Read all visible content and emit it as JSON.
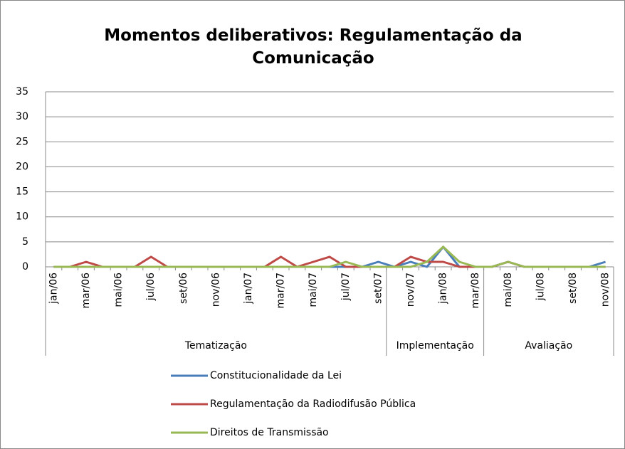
{
  "chart_data": {
    "type": "line",
    "title": "Momentos deliberativos: Regulamentação da Comunicação",
    "categories": [
      "jan/06",
      null,
      "mar/06",
      null,
      "mai/06",
      null,
      "jul/06",
      null,
      "set/06",
      null,
      "nov/06",
      null,
      "jan/07",
      null,
      "mar/07",
      null,
      "mai/07",
      null,
      "jul/07",
      null,
      "set/07",
      null,
      "nov/07",
      null,
      "jan/08",
      null,
      "mar/08",
      null,
      "mai/08",
      null,
      "jul/08",
      null,
      "set/08",
      null,
      "nov/08"
    ],
    "groups": [
      {
        "label": "Tematização",
        "count": 21
      },
      {
        "label": "Implementação",
        "count": 6
      },
      {
        "label": "Avaliação",
        "count": 8
      }
    ],
    "series": [
      {
        "name": "Constitucionalidade da Lei",
        "color": "#4a7ebb",
        "values": [
          0,
          0,
          0,
          0,
          0,
          0,
          0,
          0,
          0,
          0,
          0,
          0,
          0,
          0,
          0,
          0,
          0,
          0,
          0,
          0,
          1,
          0,
          1,
          0,
          4,
          0,
          0,
          0,
          1,
          0,
          0,
          0,
          0,
          0,
          1
        ]
      },
      {
        "name": "Regulamentação da Radiodifusão Pública",
        "color": "#be4b48",
        "values": [
          0,
          0,
          1,
          0,
          0,
          0,
          2,
          0,
          0,
          0,
          0,
          0,
          0,
          0,
          2,
          0,
          1,
          2,
          0,
          0,
          0,
          0,
          2,
          1,
          1,
          0,
          0,
          0,
          1,
          0,
          0,
          0,
          0,
          0,
          0
        ]
      },
      {
        "name": "Direitos de Transmissão",
        "color": "#98b954",
        "values": [
          0,
          0,
          0,
          0,
          0,
          0,
          0,
          0,
          0,
          0,
          0,
          0,
          0,
          0,
          0,
          0,
          0,
          0,
          1,
          0,
          0,
          0,
          0,
          1,
          4,
          1,
          0,
          0,
          1,
          0,
          0,
          0,
          0,
          0,
          0
        ]
      }
    ],
    "ylim": [
      0,
      35
    ],
    "yticks": [
      0,
      5,
      10,
      15,
      20,
      25,
      30,
      35
    ],
    "grid": true,
    "legend": "bottom"
  }
}
